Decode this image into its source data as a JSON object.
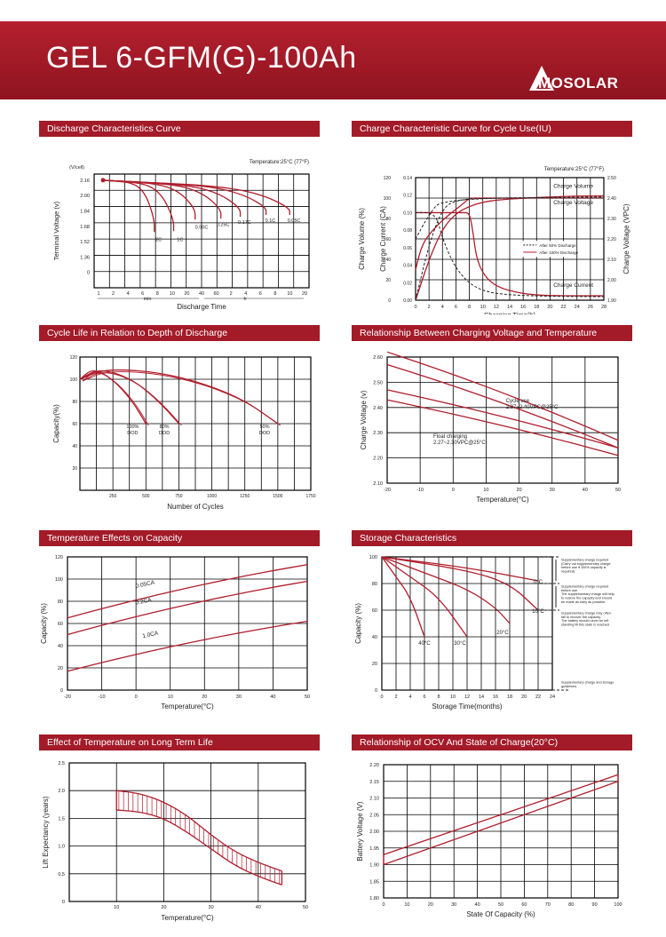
{
  "header": {
    "title": "GEL 6-GFM(G)-100Ah",
    "brand": "MOSOLAR",
    "logo_icon": "leaf-triangle-logo",
    "accent": "#a31a28"
  },
  "charts": [
    {
      "id": "discharge",
      "title": "Discharge Characteristics Curve",
      "chart_data": {
        "type": "line",
        "title": "Discharge Characteristics Curve",
        "annotation": "Temperature:25°C (77°F)",
        "ylabel": "Terminal Voltage (v)",
        "yunit": "(V/cell)",
        "xlabel": "Discharge Time",
        "yticks": [
          "2.16",
          "2.00",
          "1.84",
          "1.68",
          "1.52",
          "1.36",
          "0"
        ],
        "xticks": [
          "1",
          "2",
          "4",
          "6",
          "8",
          "10",
          "20",
          "40",
          "60",
          "2",
          "4",
          "6",
          "8",
          "10",
          "20"
        ],
        "xgroups": [
          "min",
          "h"
        ],
        "series": [
          {
            "name": "2C",
            "x": [
              1,
              2,
              4,
              6,
              8,
              10
            ],
            "y": [
              2.16,
              2.1,
              2.05,
              1.98,
              1.85,
              1.62
            ]
          },
          {
            "name": "1C",
            "x": [
              1,
              4,
              8,
              10,
              20
            ],
            "y": [
              2.16,
              2.1,
              2.05,
              1.95,
              1.63
            ]
          },
          {
            "name": "0.50C",
            "x": [
              1,
              8,
              20,
              40,
              60
            ],
            "y": [
              2.16,
              2.11,
              2.06,
              1.96,
              1.75
            ]
          },
          {
            "name": "0.25C",
            "x": [
              1,
              10,
              40,
              2,
              4
            ],
            "y": [
              2.16,
              2.12,
              2.08,
              2.02,
              1.76
            ]
          },
          {
            "name": "0.17C",
            "x": [
              1,
              20,
              2,
              4,
              6
            ],
            "y": [
              2.16,
              2.13,
              2.09,
              2.03,
              1.78
            ]
          },
          {
            "name": "0.1C",
            "x": [
              1,
              60,
              4,
              8,
              10
            ],
            "y": [
              2.16,
              2.13,
              2.1,
              2.04,
              1.8
            ]
          },
          {
            "name": "0.05C",
            "x": [
              1,
              2,
              8,
              10,
              20
            ],
            "y": [
              2.16,
              2.14,
              2.1,
              2.05,
              1.8
            ]
          }
        ]
      }
    },
    {
      "id": "charge",
      "title": "Charge Characteristic Curve for Cycle Use(IU)",
      "chart_data": {
        "type": "line",
        "title": "Charge Characteristic Curve for Cycle Use(IU)",
        "annotation": "Temperature:25°C (77°F)",
        "ylabel_left1": "Charge Volume (%)",
        "ylabel_left2": "Charge Current (CA)",
        "ylabel_right": "Charge Voltage (VPC)",
        "xlabel": "Charging Time(h)",
        "yticks_volume": [
          "0",
          "20",
          "40",
          "60",
          "80",
          "100",
          "120"
        ],
        "yticks_current": [
          "0.00",
          "0.02",
          "0.04",
          "0.06",
          "0.08",
          "0.10",
          "0.12",
          "0.14"
        ],
        "yticks_voltage": [
          "1.90",
          "2.00",
          "2.10",
          "2.20",
          "2.30",
          "2.40",
          "2.50"
        ],
        "xticks": [
          "0",
          "2",
          "4",
          "6",
          "8",
          "10",
          "12",
          "14",
          "16",
          "18",
          "20",
          "22",
          "24",
          "26",
          "28"
        ],
        "labels": [
          "Charge Volume",
          "Charge Voltage",
          "Charge Current"
        ],
        "legend": [
          "After 50% Discharge",
          "After 100% Discharge"
        ],
        "series": [
          {
            "name": "Charge Volume",
            "x": [
              0,
              2,
              4,
              6,
              8,
              10,
              12,
              16,
              20,
              24,
              28
            ],
            "y": [
              0,
              40,
              70,
              85,
              92,
              96,
              98,
              100,
              101,
              102,
              102
            ]
          },
          {
            "name": "Charge Voltage",
            "x": [
              0,
              1,
              3,
              5,
              7,
              8,
              9,
              12,
              16,
              20,
              28
            ],
            "y": [
              2.05,
              2.18,
              2.26,
              2.32,
              2.37,
              2.4,
              2.4,
              2.4,
              2.4,
              2.4,
              2.4
            ]
          },
          {
            "name": "Charge Current",
            "x": [
              0,
              7,
              8,
              8.5,
              9,
              10,
              12,
              16,
              20,
              28
            ],
            "y": [
              0.1,
              0.1,
              0.1,
              0.08,
              0.05,
              0.03,
              0.015,
              0.007,
              0.005,
              0.005
            ]
          }
        ]
      }
    },
    {
      "id": "cycle",
      "title": "Cycle Life in Relation to Depth of Discharge",
      "chart_data": {
        "type": "line",
        "title": "Cycle Life in Relation to Depth of Discharge",
        "ylabel": "Capacity(%)",
        "xlabel": "Number of Cycles",
        "yticks": [
          "120",
          "100",
          "80",
          "60",
          "40",
          "20"
        ],
        "xticks": [
          "250",
          "500",
          "750",
          "1000",
          "1250",
          "1500",
          "1750"
        ],
        "xlim": [
          0,
          1750
        ],
        "ylim": [
          0,
          120
        ],
        "series": [
          {
            "name": "100% DOD",
            "x": [
              0,
              100,
              250,
              400,
              500
            ],
            "y": [
              100,
              110,
              100,
              80,
              60
            ]
          },
          {
            "name": "80% DOD",
            "x": [
              0,
              150,
              400,
              600,
              750
            ],
            "y": [
              100,
              110,
              100,
              80,
              60
            ]
          },
          {
            "name": "50% DOD",
            "x": [
              0,
              200,
              700,
              1200,
              1500
            ],
            "y": [
              100,
              110,
              105,
              85,
              60
            ]
          }
        ]
      }
    },
    {
      "id": "voltemp",
      "title": "Relationship Between Charging Voltage and Temperature",
      "chart_data": {
        "type": "line",
        "title": "Relationship Between Charging Voltage and Temperature",
        "ylabel": "Charge Voltage (v)",
        "xlabel": "Temperature(°C)",
        "yticks": [
          "2.60",
          "2.50",
          "2.40",
          "2.30",
          "2.20",
          "2.10"
        ],
        "xticks": [
          "-20",
          "-10",
          "0",
          "10",
          "20",
          "30",
          "40",
          "50"
        ],
        "xlim": [
          -20,
          50
        ],
        "ylim": [
          2.1,
          2.6
        ],
        "notes": [
          "Cycle use\n2.37~2.40VPC@25°C",
          "Float charging\n2.27~2.30VPC@25°C"
        ],
        "series": [
          {
            "name": "Cycle use upper",
            "x": [
              -20,
              50
            ],
            "y": [
              2.62,
              2.27
            ]
          },
          {
            "name": "Cycle use lower",
            "x": [
              -20,
              50
            ],
            "y": [
              2.57,
              2.24
            ]
          },
          {
            "name": "Float upper",
            "x": [
              -20,
              50
            ],
            "y": [
              2.47,
              2.24
            ]
          },
          {
            "name": "Float lower",
            "x": [
              -20,
              50
            ],
            "y": [
              2.43,
              2.21
            ]
          }
        ]
      }
    },
    {
      "id": "tempcap",
      "title": "Temperature Effects on Capacity",
      "chart_data": {
        "type": "line",
        "title": "Temperature Effects on Capacity",
        "ylabel": "Capacity (%)",
        "xlabel": "Temperature(°C)",
        "yticks": [
          "120",
          "100",
          "80",
          "60",
          "40",
          "20",
          "0"
        ],
        "xticks": [
          "-20",
          "-10",
          "0",
          "10",
          "20",
          "30",
          "40",
          "50"
        ],
        "xlim": [
          -20,
          50
        ],
        "ylim": [
          0,
          120
        ],
        "series": [
          {
            "name": "0.05CA",
            "x": [
              -20,
              50
            ],
            "y": [
              65,
              113
            ]
          },
          {
            "name": "0.2CA",
            "x": [
              -20,
              50
            ],
            "y": [
              50,
              98
            ]
          },
          {
            "name": "1.0CA",
            "x": [
              -20,
              50
            ],
            "y": [
              17,
              62
            ]
          }
        ]
      }
    },
    {
      "id": "storage",
      "title": "Storage Characteristics",
      "chart_data": {
        "type": "line",
        "title": "Storage Characteristics",
        "ylabel": "Capacity (%)",
        "xlabel": "Storage Time(months)",
        "yticks": [
          "100",
          "80",
          "60",
          "40",
          "20",
          "0"
        ],
        "xticks": [
          "0",
          "2",
          "4",
          "6",
          "8",
          "10",
          "12",
          "14",
          "16",
          "18",
          "20",
          "22",
          "24"
        ],
        "xlim": [
          0,
          24
        ],
        "ylim": [
          0,
          100
        ],
        "notes": [
          "Supplementary charge required\n(Carry out supplementary charge\nbefore use if 100% capacity is\nrequired)",
          "Supplementary charge required\nbefore use.\nThe supplementary charge will help\nto restore the capacity and should\nbe made as early as possible.",
          "Supplementary charge may often\nfail to recover the capacity.\nThe battery should never be left\nstanding till this state is reached",
          "Supplementary charge and storage\nguidelines"
        ],
        "series": [
          {
            "name": "40°C",
            "x": [
              0,
              2,
              4,
              6
            ],
            "y": [
              100,
              85,
              70,
              40
            ]
          },
          {
            "name": "30°C",
            "x": [
              0,
              4,
              8,
              12
            ],
            "y": [
              100,
              85,
              70,
              40
            ]
          },
          {
            "name": "20°C",
            "x": [
              0,
              6,
              12,
              16,
              18
            ],
            "y": [
              100,
              88,
              76,
              62,
              50
            ]
          },
          {
            "name": "10°C",
            "x": [
              0,
              12,
              18,
              22
            ],
            "y": [
              100,
              90,
              80,
              60
            ]
          },
          {
            "name": "0°C",
            "x": [
              0,
              12,
              22
            ],
            "y": [
              100,
              92,
              82
            ]
          }
        ]
      }
    },
    {
      "id": "life",
      "title": "Effect of Temperature on Long Term Life",
      "chart_data": {
        "type": "area",
        "title": "Effect of Temperature on Long Term Life",
        "ylabel": "Lift Expectancy (years)",
        "xlabel": "Temperature(°C)",
        "yticks": [
          "2.5",
          "2.0",
          "1.5",
          "1.0",
          "0.5",
          "0"
        ],
        "xticks": [
          "10",
          "20",
          "30",
          "40",
          "50"
        ],
        "xlim": [
          0,
          50
        ],
        "ylim": [
          0,
          2.5
        ],
        "series": [
          {
            "name": "upper",
            "x": [
              10,
              15,
              20,
              25,
              30,
              35,
              40,
              45
            ],
            "y": [
              2.0,
              1.95,
              1.8,
              1.55,
              1.2,
              0.9,
              0.7,
              0.55
            ]
          },
          {
            "name": "lower",
            "x": [
              10,
              15,
              20,
              25,
              30,
              35,
              40,
              45
            ],
            "y": [
              1.65,
              1.62,
              1.5,
              1.25,
              0.95,
              0.65,
              0.45,
              0.3
            ]
          }
        ]
      }
    },
    {
      "id": "ocv",
      "title": "Relationship of OCV And State of Charge(20°C)",
      "chart_data": {
        "type": "line",
        "title": "Relationship of OCV And State of Charge(20°C)",
        "ylabel": "Battery Voltage (V)",
        "xlabel": "State Of Capacity (%)",
        "yticks": [
          "2.20",
          "2.15",
          "2.10",
          "2.05",
          "2.00",
          "1.95",
          "1.90",
          "1.85",
          "1.80"
        ],
        "xticks": [
          "0",
          "10",
          "20",
          "30",
          "40",
          "50",
          "60",
          "70",
          "80",
          "90",
          "100"
        ],
        "xlim": [
          0,
          100
        ],
        "ylim": [
          1.8,
          2.2
        ],
        "series": [
          {
            "name": "upper",
            "x": [
              0,
              100
            ],
            "y": [
              1.93,
              2.17
            ]
          },
          {
            "name": "lower",
            "x": [
              0,
              100
            ],
            "y": [
              1.9,
              2.15
            ]
          }
        ]
      }
    }
  ]
}
